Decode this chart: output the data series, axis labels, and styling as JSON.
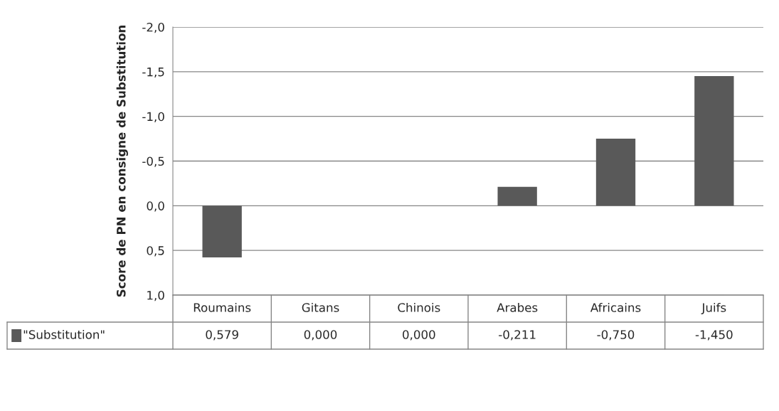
{
  "chart_data": {
    "type": "bar",
    "ylabel": "Score de PN en consigne de Substitution",
    "categories": [
      "Roumains",
      "Gitans",
      "Chinois",
      "Arabes",
      "Africains",
      "Juifs"
    ],
    "series": [
      {
        "name": "\"Substitution\"",
        "color": "#595959",
        "values": [
          0.579,
          0.0,
          0.0,
          -0.211,
          -0.75,
          -1.45
        ],
        "value_labels": [
          "0,579",
          "0,000",
          "0,000",
          "-0,211",
          "-0,750",
          "-1,450"
        ]
      }
    ],
    "ylim": [
      1.0,
      -2.0
    ],
    "yticks": [
      {
        "value": -2.0,
        "label": "-2,0"
      },
      {
        "value": -1.5,
        "label": "-1,5"
      },
      {
        "value": -1.0,
        "label": "-1,0"
      },
      {
        "value": -0.5,
        "label": "-0,5"
      },
      {
        "value": 0.0,
        "label": "0,0"
      },
      {
        "value": 0.5,
        "label": "0,5"
      },
      {
        "value": 1.0,
        "label": "1,0"
      }
    ],
    "grid": "y",
    "legend": "bottom"
  }
}
